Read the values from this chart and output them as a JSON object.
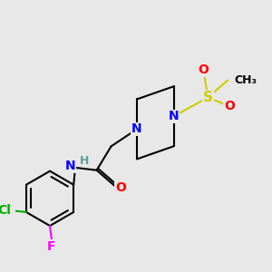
{
  "bg_color": "#e8e8e8",
  "bond_color": "#000000",
  "bond_width": 1.5,
  "atom_colors": {
    "N": "#0000ff",
    "O": "#ff0000",
    "S": "#cccc00",
    "Cl": "#00aa00",
    "F": "#ff00ff",
    "H": "#5f9ea0",
    "C": "#000000"
  },
  "font_size": 10,
  "font_size_small": 9
}
